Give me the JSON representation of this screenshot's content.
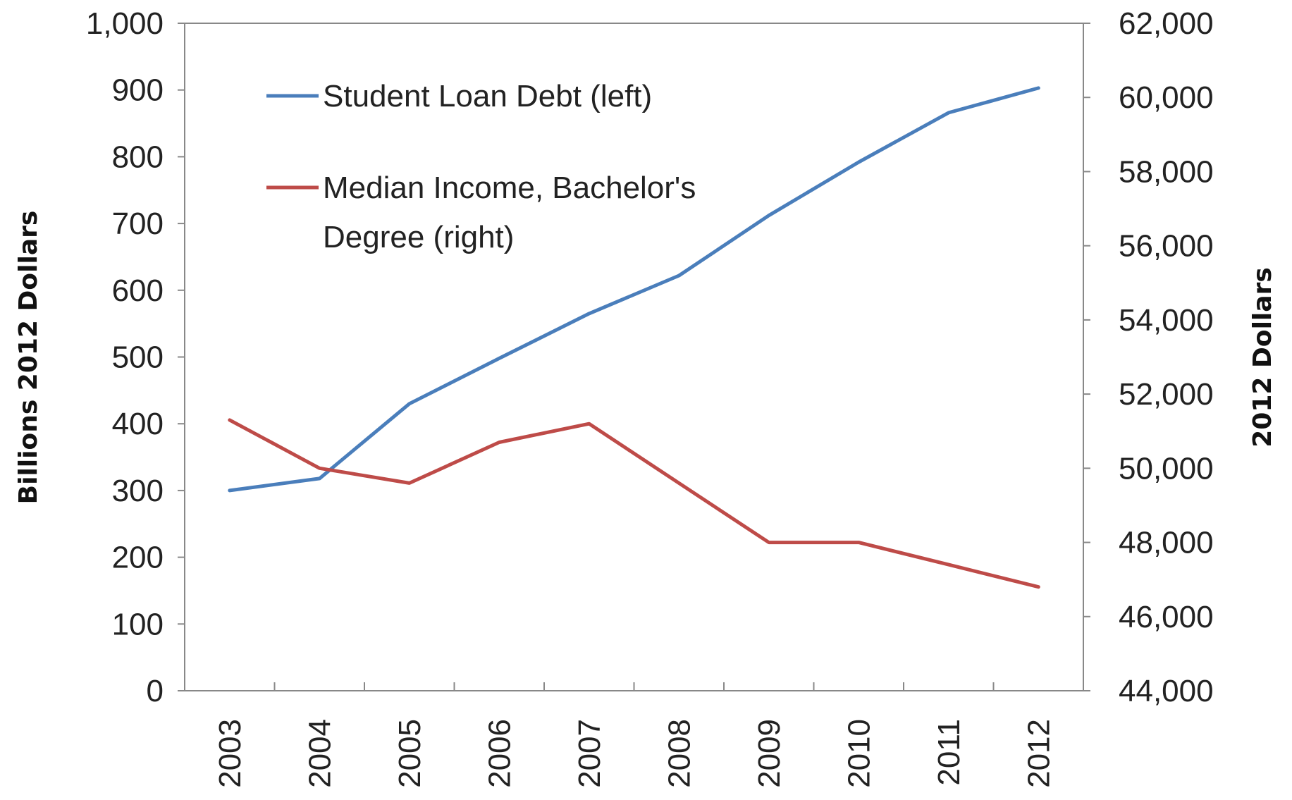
{
  "chart_data": {
    "type": "line",
    "categories": [
      "2003",
      "2004",
      "2005",
      "2006",
      "2007",
      "2008",
      "2009",
      "2010",
      "2011",
      "2012"
    ],
    "series": [
      {
        "name": "Student Loan Debt (left)",
        "axis": "left",
        "color": "#4a7ebb",
        "values": [
          300,
          318,
          430,
          498,
          565,
          622,
          712,
          792,
          866,
          903
        ]
      },
      {
        "name": "Median Income, Bachelor's Degree (right)",
        "name_lines": [
          "Median Income, Bachelor's",
          "Degree (right)"
        ],
        "axis": "right",
        "color": "#be4b48",
        "values": [
          51300,
          50000,
          49600,
          50700,
          51200,
          49600,
          48000,
          48000,
          47400,
          46800
        ]
      }
    ],
    "y_left": {
      "label": "Billions  2012 Dollars",
      "range": [
        0,
        1000
      ],
      "ticks": [
        "0",
        "100",
        "200",
        "300",
        "400",
        "500",
        "600",
        "700",
        "800",
        "900",
        "1,000"
      ]
    },
    "y_right": {
      "label": "2012 Dollars",
      "range": [
        44000,
        62000
      ],
      "ticks": [
        "44,000",
        "46,000",
        "48,000",
        "50,000",
        "52,000",
        "54,000",
        "56,000",
        "58,000",
        "60,000",
        "62,000"
      ]
    },
    "x_tick_rotation": "vertical",
    "grid": false,
    "legend_position": "top-left inside plot"
  }
}
